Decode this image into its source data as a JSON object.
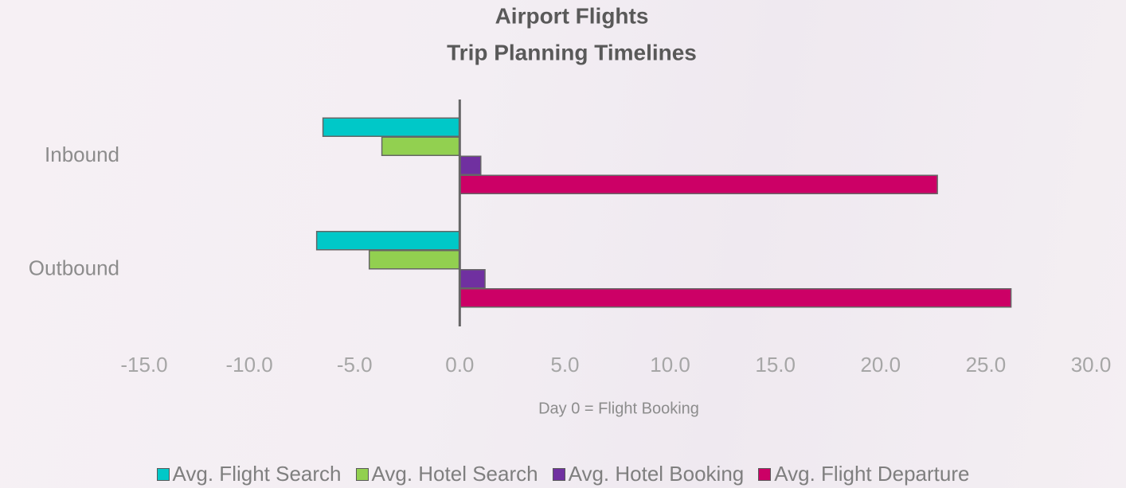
{
  "chart_data": {
    "type": "hbar",
    "title": "Airport Flights",
    "subtitle": "Trip Planning Timelines",
    "x_label": "Day 0 = Flight Booking",
    "categories": [
      "Inbound",
      "Outbound"
    ],
    "series": [
      {
        "name": "Avg. Flight Search",
        "color": "#00c8c8",
        "values": [
          -6.5,
          -6.8
        ]
      },
      {
        "name": "Avg. Hotel Search",
        "color": "#92d050",
        "values": [
          -3.7,
          -4.3
        ]
      },
      {
        "name": "Avg. Hotel Booking",
        "color": "#7030a0",
        "values": [
          1.0,
          1.2
        ]
      },
      {
        "name": "Avg. Flight Departure",
        "color": "#cc0066",
        "values": [
          22.7,
          26.2
        ]
      }
    ],
    "xlim": [
      -15,
      30
    ],
    "xticks": [
      {
        "value": -15,
        "label": "-15.0"
      },
      {
        "value": -10,
        "label": "-10.0"
      },
      {
        "value": -5,
        "label": "-5.0"
      },
      {
        "value": 0,
        "label": "0.0"
      },
      {
        "value": 5,
        "label": "5.0"
      },
      {
        "value": 10,
        "label": "10.0"
      },
      {
        "value": 15,
        "label": "15.0"
      },
      {
        "value": 20,
        "label": "20.0"
      },
      {
        "value": 25,
        "label": "25.0"
      },
      {
        "value": 30,
        "label": "30.0"
      }
    ],
    "legend": "bottom"
  }
}
